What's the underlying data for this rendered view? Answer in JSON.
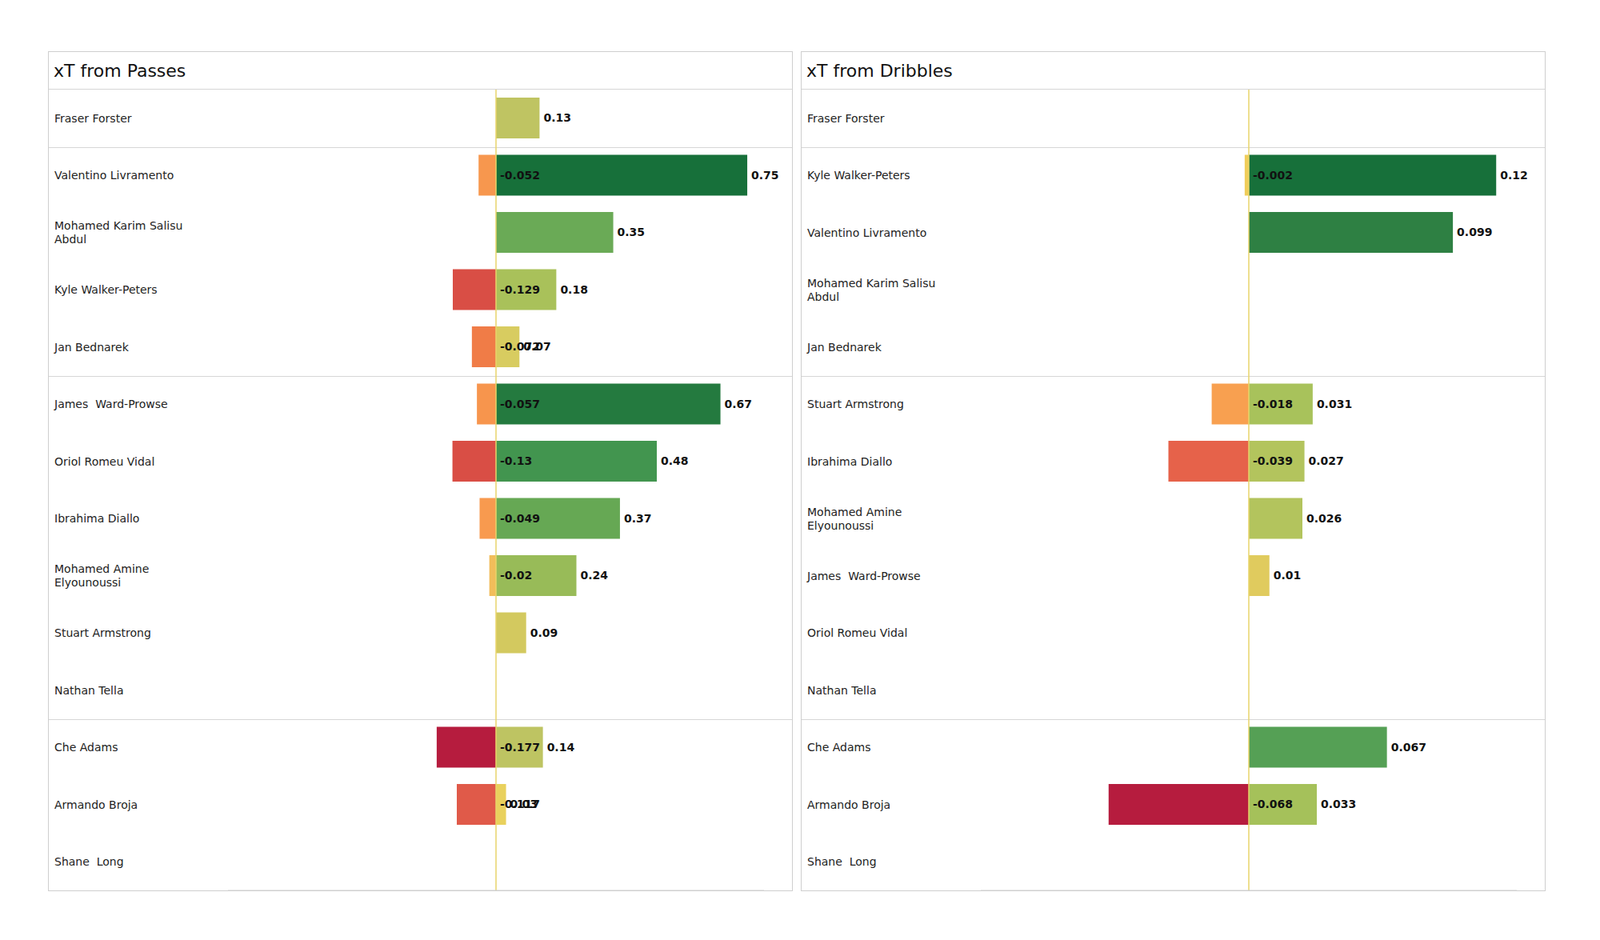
{
  "chart_data": [
    {
      "type": "bar",
      "title": "xT from Passes",
      "orientation": "horizontal",
      "stacked": true,
      "data_labels": true,
      "tick_labels": false,
      "grid": false,
      "categories": [
        "Fraser Forster",
        "Valentino Livramento",
        "Mohamed Karim Salisu Abdul",
        "Kyle Walker-Peters",
        "Jan Bednarek",
        "James  Ward-Prowse",
        "Oriol Romeu Vidal",
        "Ibrahima Diallo",
        "Mohamed Amine Elyounoussi",
        "Stuart Armstrong",
        "Nathan Tella",
        "Che Adams",
        "Armando Broja",
        "Shane  Long"
      ],
      "xlim": [
        -0.8,
        0.8
      ],
      "xticks": [
        -0.8,
        0,
        0.8
      ],
      "series": [
        {
          "values": [
            0,
            -0.052,
            0,
            -0.129,
            -0.072,
            -0.057,
            -0.13,
            -0.049,
            -0.02,
            0,
            0,
            -0.177,
            -0.117,
            0
          ],
          "value_labels": [
            "0",
            "-0.052",
            "0",
            "-0.129",
            "-0.072",
            "-0.057",
            "-0.13",
            "-0.049",
            "-0.02",
            "0",
            "0",
            "-0.177",
            "-0.117",
            "0"
          ],
          "colors": [
            "#f0d95e",
            "#f7974e",
            "#f0d95e",
            "#d94e45",
            "#f07c47",
            "#f7954d",
            "#d94e45",
            "#f89a4f",
            "#f1bd5a",
            "#f0d95e",
            "#f0d95e",
            "#b61c3e",
            "#e05a49",
            "#f0d95e"
          ]
        },
        {
          "values": [
            0.13,
            0.75,
            0.35,
            0.18,
            0.07,
            0.67,
            0.48,
            0.37,
            0.24,
            0.09,
            0,
            0.14,
            0.03,
            0
          ],
          "value_labels": [
            "0.13",
            "0.75",
            "0.35",
            "0.18",
            "0.07",
            "0.67",
            "0.48",
            "0.37",
            "0.24",
            "0.09",
            "0.00",
            "0.14",
            "0.03",
            "0.00"
          ],
          "colors": [
            "#bfc462",
            "#17703a",
            "#6aaa56",
            "#a9c15a",
            "#d8cc60",
            "#247a3f",
            "#42954f",
            "#66a854",
            "#98bb58",
            "#d3c95f",
            "#f0d95e",
            "#bec462",
            "#e9d15d",
            "#f0d95e"
          ]
        }
      ]
    },
    {
      "type": "bar",
      "title": "xT from Dribbles",
      "orientation": "horizontal",
      "stacked": true,
      "data_labels": true,
      "tick_labels": false,
      "grid": false,
      "categories": [
        "Fraser Forster",
        "Kyle Walker-Peters",
        "Valentino Livramento",
        "Mohamed Karim Salisu Abdul",
        "Jan Bednarek",
        "Stuart Armstrong",
        "Ibrahima Diallo",
        "Mohamed Amine Elyounoussi",
        "James  Ward-Prowse",
        "Oriol Romeu Vidal",
        "Nathan Tella",
        "Che Adams",
        "Armando Broja",
        "Shane  Long"
      ],
      "xlim": [
        -0.13,
        0.13
      ],
      "xticks": [
        -0.13,
        0,
        0.13
      ],
      "series": [
        {
          "values": [
            0,
            -0.002,
            0,
            0,
            0,
            -0.018,
            -0.039,
            0,
            0,
            0,
            0,
            0,
            -0.068,
            0
          ],
          "value_labels": [
            "0",
            "-0.002",
            "0",
            "0",
            "0",
            "-0.018",
            "-0.039",
            "0",
            "0",
            "0",
            "0",
            "0",
            "-0.068",
            "0"
          ],
          "colors": [
            "#f0d95e",
            "#f0cd5a",
            "#f0d95e",
            "#f0d95e",
            "#f0d95e",
            "#f8a050",
            "#e6624a",
            "#f0d95e",
            "#f0d95e",
            "#f0d95e",
            "#f0d95e",
            "#f0d95e",
            "#b61c3e",
            "#f0d95e"
          ]
        },
        {
          "values": [
            0,
            0.12,
            0.099,
            0,
            0,
            0.031,
            0.027,
            0.026,
            0.01,
            0,
            0,
            0.067,
            0.033,
            0
          ],
          "value_labels": [
            "0",
            "0.12",
            "0.099",
            "0",
            "0",
            "0.031",
            "0.027",
            "0.026",
            "0.01",
            "0",
            "0",
            "0.067",
            "0.033",
            "0"
          ],
          "colors": [
            "#f0d95e",
            "#17703a",
            "#2e8043",
            "#f0d95e",
            "#f0d95e",
            "#a8c25b",
            "#b3c45d",
            "#b3c45d",
            "#e0cb5e",
            "#f0d95e",
            "#f0d95e",
            "#55a055",
            "#a5c15a",
            "#f0d95e"
          ]
        }
      ]
    }
  ]
}
